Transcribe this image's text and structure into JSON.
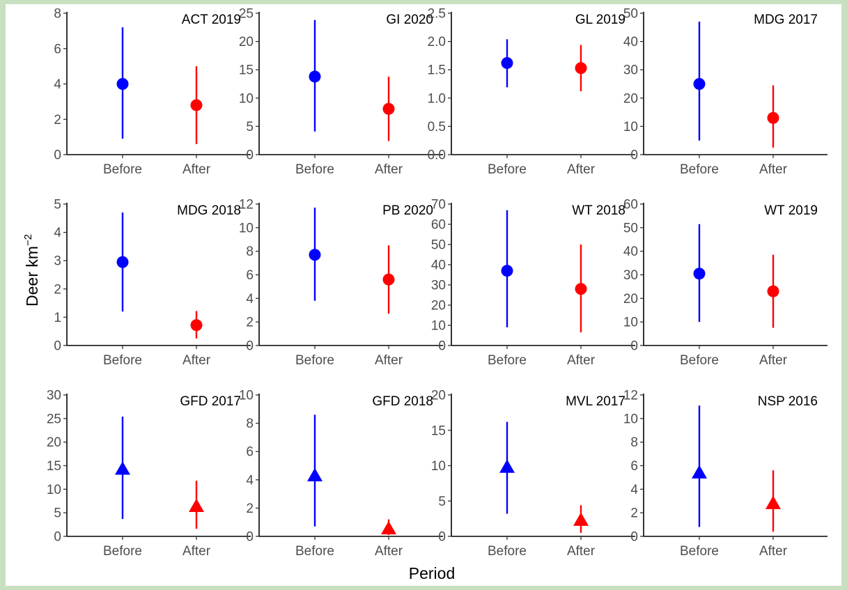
{
  "chart_data": {
    "type": "scatter",
    "layout": "faceted 3x4 point-range",
    "xlabel": "Period",
    "ylabel": "Deer km",
    "ylabel_superscript": "−2",
    "categories": [
      "Before",
      "After"
    ],
    "colors": {
      "Before": "#0000ff",
      "After": "#ff0000"
    },
    "panels": [
      {
        "title": "ACT 2019",
        "marker": "circle",
        "ylim": [
          0,
          8
        ],
        "yticks": [
          "0",
          "2",
          "4",
          "6",
          "8"
        ],
        "points": [
          {
            "x": "Before",
            "y": 4.0,
            "lo": 0.9,
            "hi": 7.2
          },
          {
            "x": "After",
            "y": 2.8,
            "lo": 0.6,
            "hi": 5.0
          }
        ]
      },
      {
        "title": "GI 2020",
        "marker": "circle",
        "ylim": [
          0,
          25
        ],
        "yticks": [
          "0",
          "5",
          "10",
          "15",
          "20",
          "25"
        ],
        "points": [
          {
            "x": "Before",
            "y": 13.8,
            "lo": 4.1,
            "hi": 23.8
          },
          {
            "x": "After",
            "y": 8.1,
            "lo": 2.4,
            "hi": 13.8
          }
        ]
      },
      {
        "title": "GL 2019",
        "marker": "circle",
        "ylim": [
          0,
          2.5
        ],
        "yticks": [
          "0.0",
          "0.5",
          "1.0",
          "1.5",
          "2.0",
          "2.5"
        ],
        "points": [
          {
            "x": "Before",
            "y": 1.62,
            "lo": 1.19,
            "hi": 2.04
          },
          {
            "x": "After",
            "y": 1.53,
            "lo": 1.12,
            "hi": 1.94
          }
        ]
      },
      {
        "title": "MDG 2017",
        "marker": "circle",
        "ylim": [
          0,
          50
        ],
        "yticks": [
          "0",
          "10",
          "20",
          "30",
          "40",
          "50"
        ],
        "points": [
          {
            "x": "Before",
            "y": 25.0,
            "lo": 5.0,
            "hi": 47.0
          },
          {
            "x": "After",
            "y": 13.0,
            "lo": 2.5,
            "hi": 24.5
          }
        ]
      },
      {
        "title": "MDG 2018",
        "marker": "circle",
        "ylim": [
          0,
          5
        ],
        "yticks": [
          "0",
          "1",
          "2",
          "3",
          "4",
          "5"
        ],
        "points": [
          {
            "x": "Before",
            "y": 2.95,
            "lo": 1.2,
            "hi": 4.7
          },
          {
            "x": "After",
            "y": 0.72,
            "lo": 0.25,
            "hi": 1.22
          }
        ]
      },
      {
        "title": "PB 2020",
        "marker": "circle",
        "ylim": [
          0,
          12
        ],
        "yticks": [
          "0",
          "2",
          "4",
          "6",
          "8",
          "10",
          "12"
        ],
        "points": [
          {
            "x": "Before",
            "y": 7.7,
            "lo": 3.8,
            "hi": 11.7
          },
          {
            "x": "After",
            "y": 5.6,
            "lo": 2.7,
            "hi": 8.5
          }
        ]
      },
      {
        "title": "WT 2018",
        "marker": "circle",
        "ylim": [
          0,
          70
        ],
        "yticks": [
          "0",
          "10",
          "20",
          "30",
          "40",
          "50",
          "60",
          "70"
        ],
        "points": [
          {
            "x": "Before",
            "y": 37.0,
            "lo": 9.0,
            "hi": 67.0
          },
          {
            "x": "After",
            "y": 28.0,
            "lo": 6.5,
            "hi": 50.0
          }
        ]
      },
      {
        "title": "WT 2019",
        "marker": "circle",
        "ylim": [
          0,
          60
        ],
        "yticks": [
          "0",
          "10",
          "20",
          "30",
          "40",
          "50",
          "60"
        ],
        "points": [
          {
            "x": "Before",
            "y": 30.5,
            "lo": 10.0,
            "hi": 51.5
          },
          {
            "x": "After",
            "y": 23.0,
            "lo": 7.5,
            "hi": 38.5
          }
        ]
      },
      {
        "title": "GFD 2017",
        "marker": "triangle",
        "ylim": [
          0,
          30
        ],
        "yticks": [
          "0",
          "5",
          "10",
          "15",
          "20",
          "25",
          "30"
        ],
        "points": [
          {
            "x": "Before",
            "y": 14.3,
            "lo": 3.7,
            "hi": 25.4
          },
          {
            "x": "After",
            "y": 6.4,
            "lo": 1.6,
            "hi": 11.8
          }
        ]
      },
      {
        "title": "GFD 2018",
        "marker": "triangle",
        "ylim": [
          0,
          10
        ],
        "yticks": [
          "0",
          "2",
          "4",
          "6",
          "8",
          "10"
        ],
        "points": [
          {
            "x": "Before",
            "y": 4.3,
            "lo": 0.7,
            "hi": 8.6
          },
          {
            "x": "After",
            "y": 0.55,
            "lo": 0.1,
            "hi": 1.2
          }
        ]
      },
      {
        "title": "MVL 2017",
        "marker": "triangle",
        "ylim": [
          0,
          20
        ],
        "yticks": [
          "0",
          "5",
          "10",
          "15",
          "20"
        ],
        "points": [
          {
            "x": "Before",
            "y": 9.8,
            "lo": 3.2,
            "hi": 16.2
          },
          {
            "x": "After",
            "y": 2.3,
            "lo": 0.5,
            "hi": 4.4
          }
        ]
      },
      {
        "title": "NSP 2016",
        "marker": "triangle",
        "ylim": [
          0,
          12
        ],
        "yticks": [
          "0",
          "2",
          "4",
          "6",
          "8",
          "10",
          "12"
        ],
        "points": [
          {
            "x": "Before",
            "y": 5.4,
            "lo": 0.8,
            "hi": 11.1
          },
          {
            "x": "After",
            "y": 2.8,
            "lo": 0.4,
            "hi": 5.6
          }
        ]
      }
    ]
  }
}
